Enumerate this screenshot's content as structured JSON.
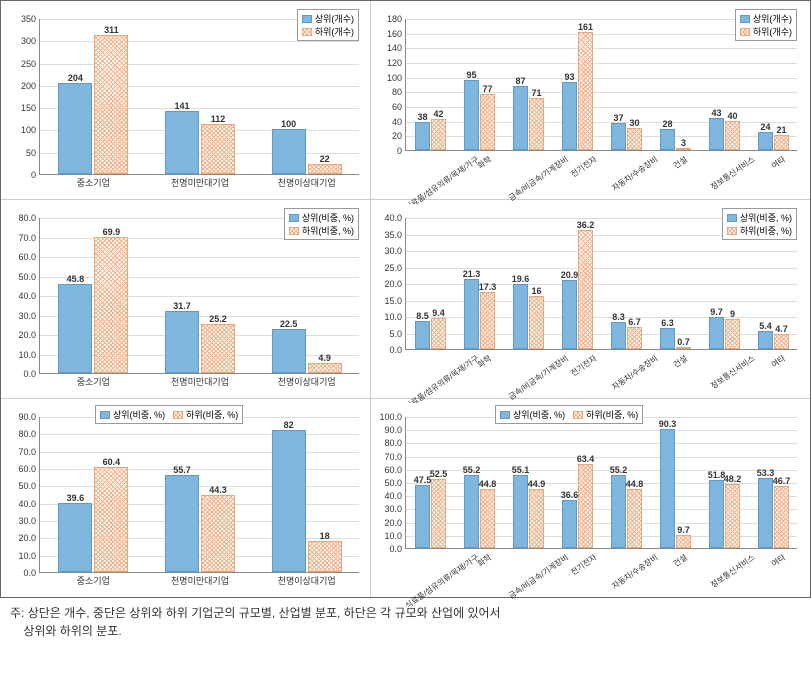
{
  "colors": {
    "blue": "#7eb6de",
    "orange": "#f5c9a8",
    "grid": "#dddddd",
    "text": "#333333"
  },
  "legend_labels": {
    "upper_count": "상위(개수)",
    "lower_count": "하위(개수)",
    "upper_pct": "상위(비중, %)",
    "lower_pct": "하위(비중, %)"
  },
  "cats3": [
    "중소기업",
    "천명미만대기업",
    "천명이상대기업"
  ],
  "cats8": [
    "식료품/섬유의류/목재/가구",
    "화학",
    "금속/비금속/기계장비",
    "전기전자",
    "자동차/수송장비",
    "건설",
    "정보통신서비스",
    "여타"
  ],
  "charts": {
    "r1c1": {
      "ymax": 350,
      "ystep": 50,
      "series": [
        [
          204,
          141,
          100
        ],
        [
          311,
          112,
          22
        ]
      ]
    },
    "r1c2": {
      "ymax": 180,
      "ystep": 20,
      "series": [
        [
          38,
          95,
          87,
          93,
          37,
          28,
          43,
          24
        ],
        [
          42,
          77,
          71,
          161,
          30,
          3,
          40,
          21
        ]
      ]
    },
    "r2c1": {
      "ymax": 80,
      "ystep": 10,
      "series": [
        [
          45.8,
          31.7,
          22.5
        ],
        [
          69.9,
          25.2,
          4.9
        ]
      ]
    },
    "r2c2": {
      "ymax": 40,
      "ystep": 5,
      "series": [
        [
          8.5,
          21.3,
          19.6,
          20.9,
          8.3,
          6.3,
          9.7,
          5.4
        ],
        [
          9.4,
          17.3,
          16.0,
          36.2,
          6.7,
          0.7,
          9.0,
          4.7
        ]
      ]
    },
    "r3c1": {
      "ymax": 90,
      "ystep": 10,
      "series": [
        [
          39.6,
          55.7,
          82.0
        ],
        [
          60.4,
          44.3,
          18.0
        ]
      ]
    },
    "r3c2": {
      "ymax": 100,
      "ystep": 10,
      "series": [
        [
          47.5,
          55.2,
          55.1,
          36.6,
          55.2,
          90.3,
          51.8,
          53.3
        ],
        [
          52.5,
          44.8,
          44.9,
          63.4,
          44.8,
          9.7,
          48.2,
          46.7
        ]
      ]
    }
  },
  "caption": {
    "prefix": "주:",
    "line1": "상단은 개수, 중단은 상위와 하위 기업군의 규모별, 산업별 분포, 하단은 각 규모와 산업에 있어서",
    "line2": "상위와 하위의 분포."
  }
}
